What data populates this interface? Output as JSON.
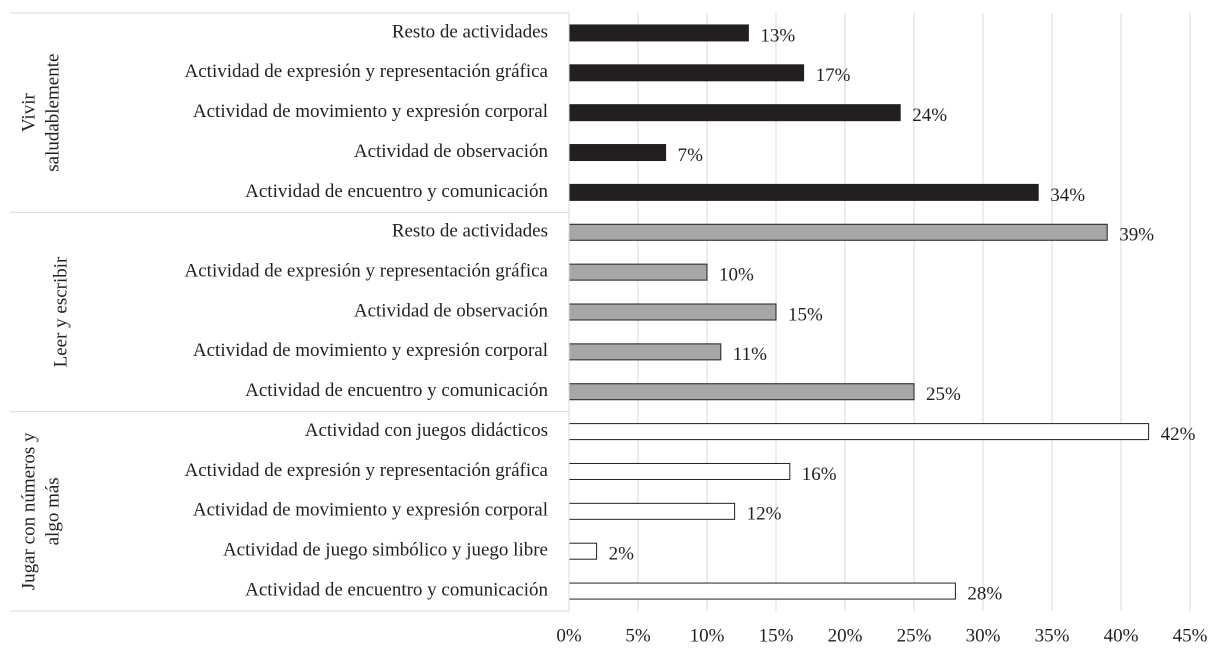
{
  "chart_data": {
    "type": "grouped-barh",
    "groups": [
      {
        "name_lines": [
          "Vivir",
          "saludablemente"
        ],
        "color": "#231f20",
        "categories": [
          "Resto de actividades",
          "Actividad de expresión y representación gráfica",
          "Actividad de movimiento y expresión corporal",
          "Actividad de observación",
          "Actividad de encuentro y comunicación"
        ],
        "values": [
          13,
          17,
          24,
          7,
          34
        ],
        "value_labels": [
          "13%",
          "17%",
          "24%",
          "7%",
          "34%"
        ]
      },
      {
        "name_lines": [
          "Leer y escribir"
        ],
        "color": "#a6a6a6",
        "categories": [
          "Resto de actividades",
          "Actividad de expresión y representación gráfica",
          "Actividad de observación",
          "Actividad de movimiento y expresión corporal",
          "Actividad de encuentro y comunicación"
        ],
        "values": [
          39,
          10,
          15,
          11,
          25
        ],
        "value_labels": [
          "39%",
          "10%",
          "15%",
          "11%",
          "25%"
        ]
      },
      {
        "name_lines": [
          "Jugar con números y",
          "algo más"
        ],
        "color": "#ffffff",
        "categories": [
          "Actividad con juegos didácticos",
          "Actividad de expresión y representación gráfica",
          "Actividad de movimiento y expresión corporal",
          "Actividad de juego simbólico y juego libre",
          "Actividad de encuentro y comunicación"
        ],
        "values": [
          42,
          16,
          12,
          2,
          28
        ],
        "value_labels": [
          "42%",
          "16%",
          "12%",
          "2%",
          "28%"
        ]
      }
    ],
    "xlim": [
      0,
      45
    ],
    "xticks": [
      {
        "value": 0,
        "label": "0%"
      },
      {
        "value": 5,
        "label": "5%"
      },
      {
        "value": 10,
        "label": "10%"
      },
      {
        "value": 15,
        "label": "15%"
      },
      {
        "value": 20,
        "label": "20%"
      },
      {
        "value": 25,
        "label": "25%"
      },
      {
        "value": 30,
        "label": "30%"
      },
      {
        "value": 35,
        "label": "35%"
      },
      {
        "value": 40,
        "label": "40%"
      },
      {
        "value": 45,
        "label": "45%"
      }
    ],
    "grid": true
  }
}
